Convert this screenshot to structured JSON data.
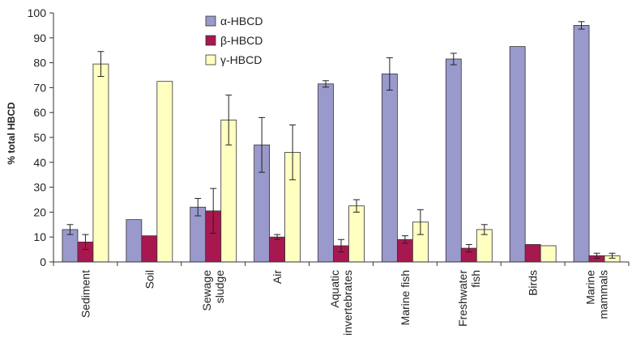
{
  "chart_data": {
    "type": "bar",
    "ylabel": "% total HBCD",
    "ylim": [
      0,
      100
    ],
    "yticks": [
      0,
      10,
      20,
      30,
      40,
      50,
      60,
      70,
      80,
      90,
      100
    ],
    "grid": false,
    "legend_position": "top-center",
    "categories": [
      [
        "Sediment"
      ],
      [
        "Soil"
      ],
      [
        "Sewage",
        "sludge"
      ],
      [
        "Air"
      ],
      [
        "Aquatic",
        "invertebrates"
      ],
      [
        "Marine fish"
      ],
      [
        "Freshwater",
        "fish"
      ],
      [
        "Birds"
      ],
      [
        "Marine",
        "mammals"
      ]
    ],
    "series": [
      {
        "name": "α-HBCD",
        "color": "#9999cc",
        "values": [
          13,
          17,
          22,
          47,
          71.5,
          75.5,
          81.5,
          86.5,
          95
        ],
        "errors": [
          2,
          null,
          3.5,
          11,
          1.3,
          6.5,
          2.3,
          null,
          1.5
        ]
      },
      {
        "name": "β-HBCD",
        "color": "#a8184f",
        "values": [
          8,
          10.5,
          20.5,
          10,
          6.5,
          9,
          5.5,
          7,
          2.5
        ],
        "errors": [
          3,
          null,
          9,
          1,
          2.5,
          1.5,
          1.5,
          null,
          1
        ]
      },
      {
        "name": "γ-HBCD",
        "color": "#ffffc0",
        "values": [
          79.5,
          72.5,
          57,
          44,
          22.5,
          16,
          13,
          6.5,
          2.5
        ],
        "errors": [
          5,
          null,
          10,
          11,
          2.5,
          5,
          2,
          null,
          1
        ]
      }
    ]
  }
}
